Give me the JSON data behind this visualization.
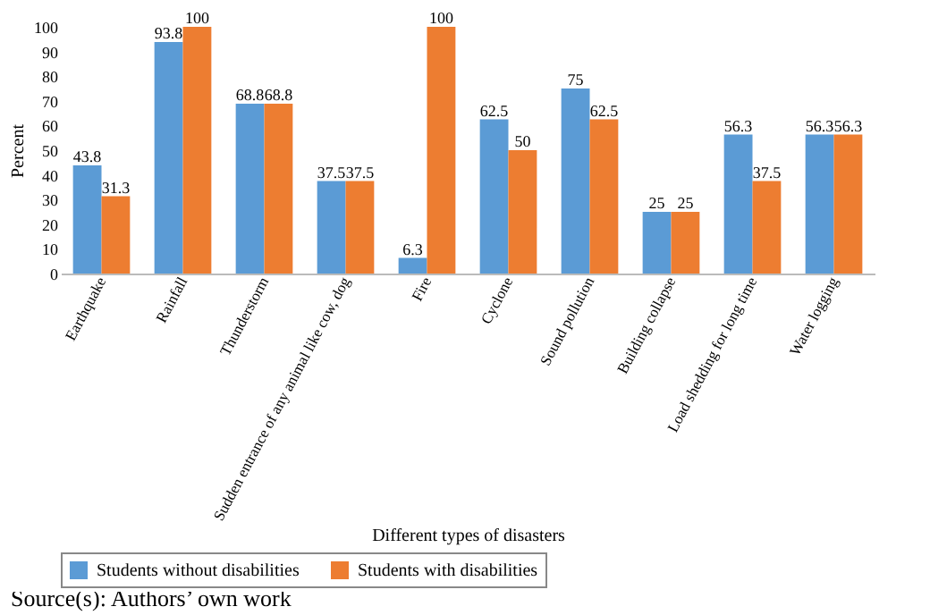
{
  "chart_data": {
    "type": "bar",
    "xlabel": "Different types of disasters",
    "ylabel": "Percent",
    "categories": [
      "Earthquake",
      "Rainfall",
      "Thunderstorm",
      "Sudden entrance of any animal like cow, dog",
      "Fire",
      "Cyclone",
      "Sound pollution",
      "Building collapse",
      "Load shedding for long time",
      "Water logging"
    ],
    "series": [
      {
        "name": "Students without disabilities",
        "color": "#5b9bd5",
        "values": [
          43.8,
          93.8,
          68.8,
          37.5,
          6.3,
          62.5,
          75,
          25,
          56.3,
          56.3
        ]
      },
      {
        "name": "Students with disabilities",
        "color": "#ed7d31",
        "values": [
          31.3,
          100,
          68.8,
          37.5,
          100,
          50,
          62.5,
          25,
          37.5,
          56.3
        ]
      }
    ],
    "ylim": [
      0,
      100
    ],
    "yticks": [
      0,
      10,
      20,
      30,
      40,
      50,
      60,
      70,
      80,
      90,
      100
    ],
    "grid": false,
    "legend": "bottom",
    "data_labels": true,
    "annotations": [
      "Source(s): Authors’ own work"
    ]
  }
}
